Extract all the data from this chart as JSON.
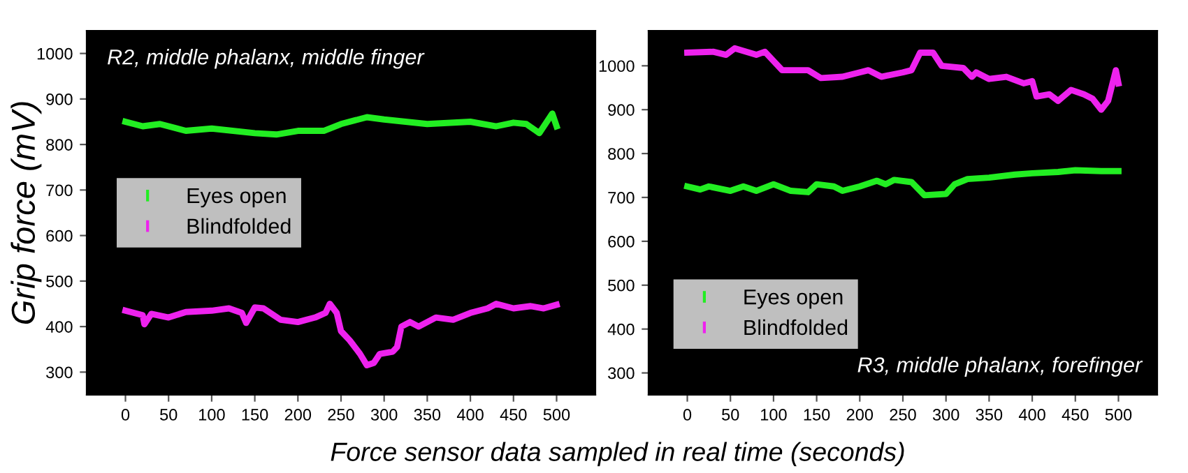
{
  "chart_data": [
    {
      "type": "line",
      "title": "R2, middle phalanx, middle finger",
      "ylabel": "Grip force (mV)",
      "xlabel": "Force sensor data sampled in real time (seconds)",
      "xlim": [
        -45,
        545
      ],
      "xticks": [
        0,
        50,
        100,
        150,
        200,
        250,
        300,
        350,
        400,
        450,
        500
      ],
      "ylim": [
        250,
        1050
      ],
      "yticks": [
        300,
        400,
        500,
        600,
        700,
        800,
        900,
        1000
      ],
      "grid": false,
      "legend": "left",
      "marker": "none",
      "line_style": "solid",
      "series": [
        {
          "name": "Eyes open",
          "color": "#22ee22",
          "x": [
            0,
            20,
            40,
            70,
            100,
            150,
            175,
            200,
            230,
            250,
            280,
            300,
            350,
            400,
            430,
            450,
            465,
            480,
            495,
            500
          ],
          "values": [
            850,
            840,
            845,
            830,
            835,
            825,
            822,
            830,
            830,
            845,
            860,
            855,
            845,
            850,
            840,
            848,
            845,
            825,
            868,
            840
          ]
        },
        {
          "name": "Blindfolded",
          "color": "#ee22ee",
          "x": [
            0,
            20,
            22,
            30,
            50,
            70,
            100,
            120,
            135,
            140,
            150,
            160,
            180,
            200,
            220,
            232,
            237,
            245,
            250,
            260,
            272,
            280,
            288,
            295,
            310,
            315,
            320,
            330,
            340,
            360,
            380,
            400,
            420,
            430,
            450,
            470,
            485,
            500
          ],
          "values": [
            435,
            425,
            405,
            428,
            420,
            432,
            435,
            440,
            430,
            408,
            442,
            440,
            415,
            410,
            420,
            430,
            450,
            430,
            390,
            370,
            340,
            315,
            320,
            340,
            345,
            355,
            400,
            410,
            400,
            420,
            415,
            430,
            440,
            450,
            440,
            445,
            440,
            448
          ]
        }
      ]
    },
    {
      "type": "line",
      "title": "R3, middle phalanx, forefinger",
      "xlim": [
        -45,
        545
      ],
      "xticks": [
        0,
        50,
        100,
        150,
        200,
        250,
        300,
        350,
        400,
        450,
        500
      ],
      "ylim": [
        250,
        1080
      ],
      "yticks": [
        300,
        400,
        500,
        600,
        700,
        800,
        900,
        1000
      ],
      "grid": false,
      "legend": "bottom left",
      "marker": "none",
      "line_style": "solid",
      "series": [
        {
          "name": "Eyes open",
          "color": "#22ee22",
          "x": [
            0,
            15,
            25,
            50,
            65,
            80,
            100,
            120,
            140,
            150,
            170,
            180,
            200,
            220,
            230,
            240,
            260,
            275,
            300,
            310,
            325,
            350,
            380,
            400,
            430,
            450,
            480,
            500
          ],
          "values": [
            725,
            718,
            725,
            715,
            725,
            715,
            730,
            715,
            712,
            730,
            725,
            715,
            725,
            738,
            730,
            740,
            735,
            705,
            708,
            730,
            742,
            745,
            752,
            755,
            758,
            762,
            760,
            760
          ]
        },
        {
          "name": "Blindfolded",
          "color": "#ee22ee",
          "x": [
            0,
            30,
            45,
            55,
            80,
            90,
            110,
            140,
            155,
            180,
            200,
            210,
            225,
            250,
            260,
            270,
            285,
            295,
            320,
            330,
            335,
            350,
            370,
            390,
            400,
            405,
            420,
            430,
            445,
            460,
            470,
            480,
            488,
            497,
            500
          ],
          "values": [
            1030,
            1032,
            1025,
            1040,
            1025,
            1032,
            990,
            990,
            972,
            975,
            985,
            990,
            975,
            985,
            990,
            1030,
            1030,
            1000,
            995,
            975,
            985,
            970,
            975,
            960,
            965,
            930,
            935,
            920,
            945,
            935,
            925,
            900,
            920,
            990,
            960
          ]
        }
      ]
    }
  ]
}
